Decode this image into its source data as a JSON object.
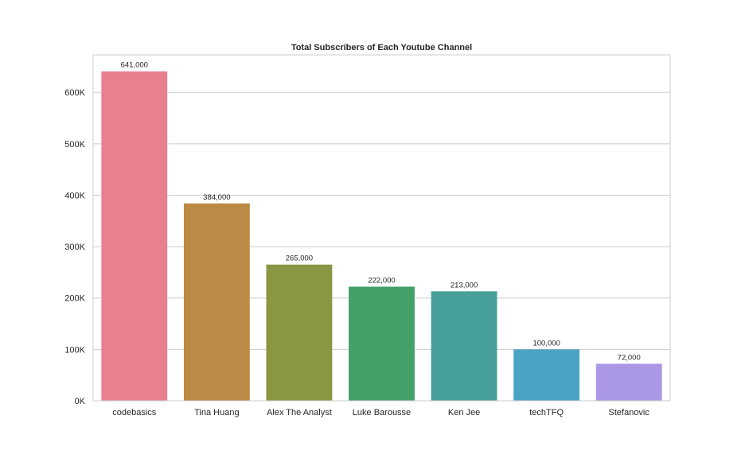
{
  "chart_data": {
    "type": "bar",
    "title": "Total Subscribers of Each Youtube Channel",
    "xlabel": "",
    "ylabel": "",
    "categories": [
      "codebasics",
      "Tina Huang",
      "Alex The Analyst",
      "Luke Barousse",
      "Ken Jee",
      "techTFQ",
      "Stefanovic"
    ],
    "values": [
      641000,
      384000,
      265000,
      222000,
      213000,
      100000,
      72000
    ],
    "data_labels": [
      "641,000",
      "384,000",
      "265,000",
      "222,000",
      "213,000",
      "100,000",
      "72,000"
    ],
    "colors": [
      "#e8808f",
      "#bb8a44",
      "#8a9642",
      "#42a068",
      "#469f98",
      "#4ba3c4",
      "#aa98e6"
    ],
    "y_ticks": [
      0,
      100000,
      200000,
      300000,
      400000,
      500000,
      600000
    ],
    "y_tick_labels": [
      "0K",
      "100K",
      "200K",
      "300K",
      "400K",
      "500K",
      "600K"
    ],
    "ylim": [
      0,
      673050
    ],
    "grid": true,
    "legend": "none"
  }
}
